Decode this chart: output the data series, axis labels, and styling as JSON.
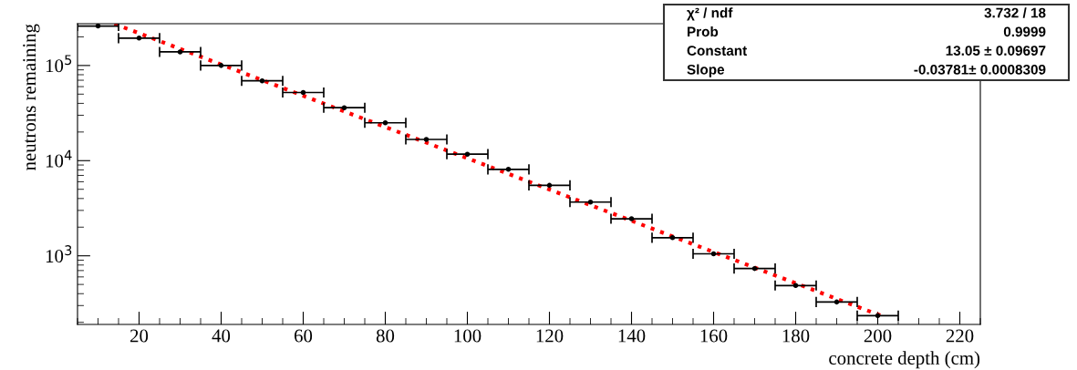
{
  "chart_data": {
    "type": "scatter",
    "xlabel": "concrete depth (cm)",
    "ylabel": "neutrons remaining",
    "log": "y",
    "grid": false,
    "legend": false,
    "xlim": [
      5,
      225
    ],
    "xticks": [
      20,
      40,
      60,
      80,
      100,
      120,
      140,
      160,
      180,
      200,
      220
    ],
    "ylim": [
      190,
      275000
    ],
    "yticks": [
      {
        "value": 1000,
        "label": "10$^{3}$"
      },
      {
        "value": 10000,
        "label": "10$^{4}$"
      },
      {
        "value": 100000,
        "label": "10$^{5}$"
      }
    ],
    "series": [
      {
        "color": "#000000",
        "marker": "circle",
        "x": [
          10,
          20,
          30,
          40,
          50,
          60,
          70,
          80,
          90,
          100,
          110,
          120,
          130,
          140,
          150,
          160,
          170,
          180,
          190,
          200
        ],
        "values": [
          260000,
          194000,
          139000,
          100000,
          69000,
          52000,
          36000,
          25000,
          16700,
          11700,
          8100,
          5500,
          3670,
          2450,
          1550,
          1050,
          735,
          487,
          327,
          235
        ],
        "xerrors": [
          5,
          5,
          5,
          5,
          5,
          5,
          5,
          5,
          5,
          5,
          5,
          5,
          5,
          5,
          5,
          5,
          5,
          5,
          5,
          5
        ]
      },
      {
        "type": "line",
        "color": "#ff0000",
        "line_style": "dotted",
        "marker": "none",
        "x": [
          14,
          60,
          100,
          150,
          201
        ],
        "values": [
          274000,
          48100,
          10600,
          1600,
          233
        ]
      }
    ],
    "annotations": [
      "χ² / ndf",
      "3.732 / 18",
      "Prob",
      "0.9999",
      "Constant",
      "13.05 ± 0.09697",
      "Slope",
      "-0.03781± 0.0008309"
    ]
  }
}
